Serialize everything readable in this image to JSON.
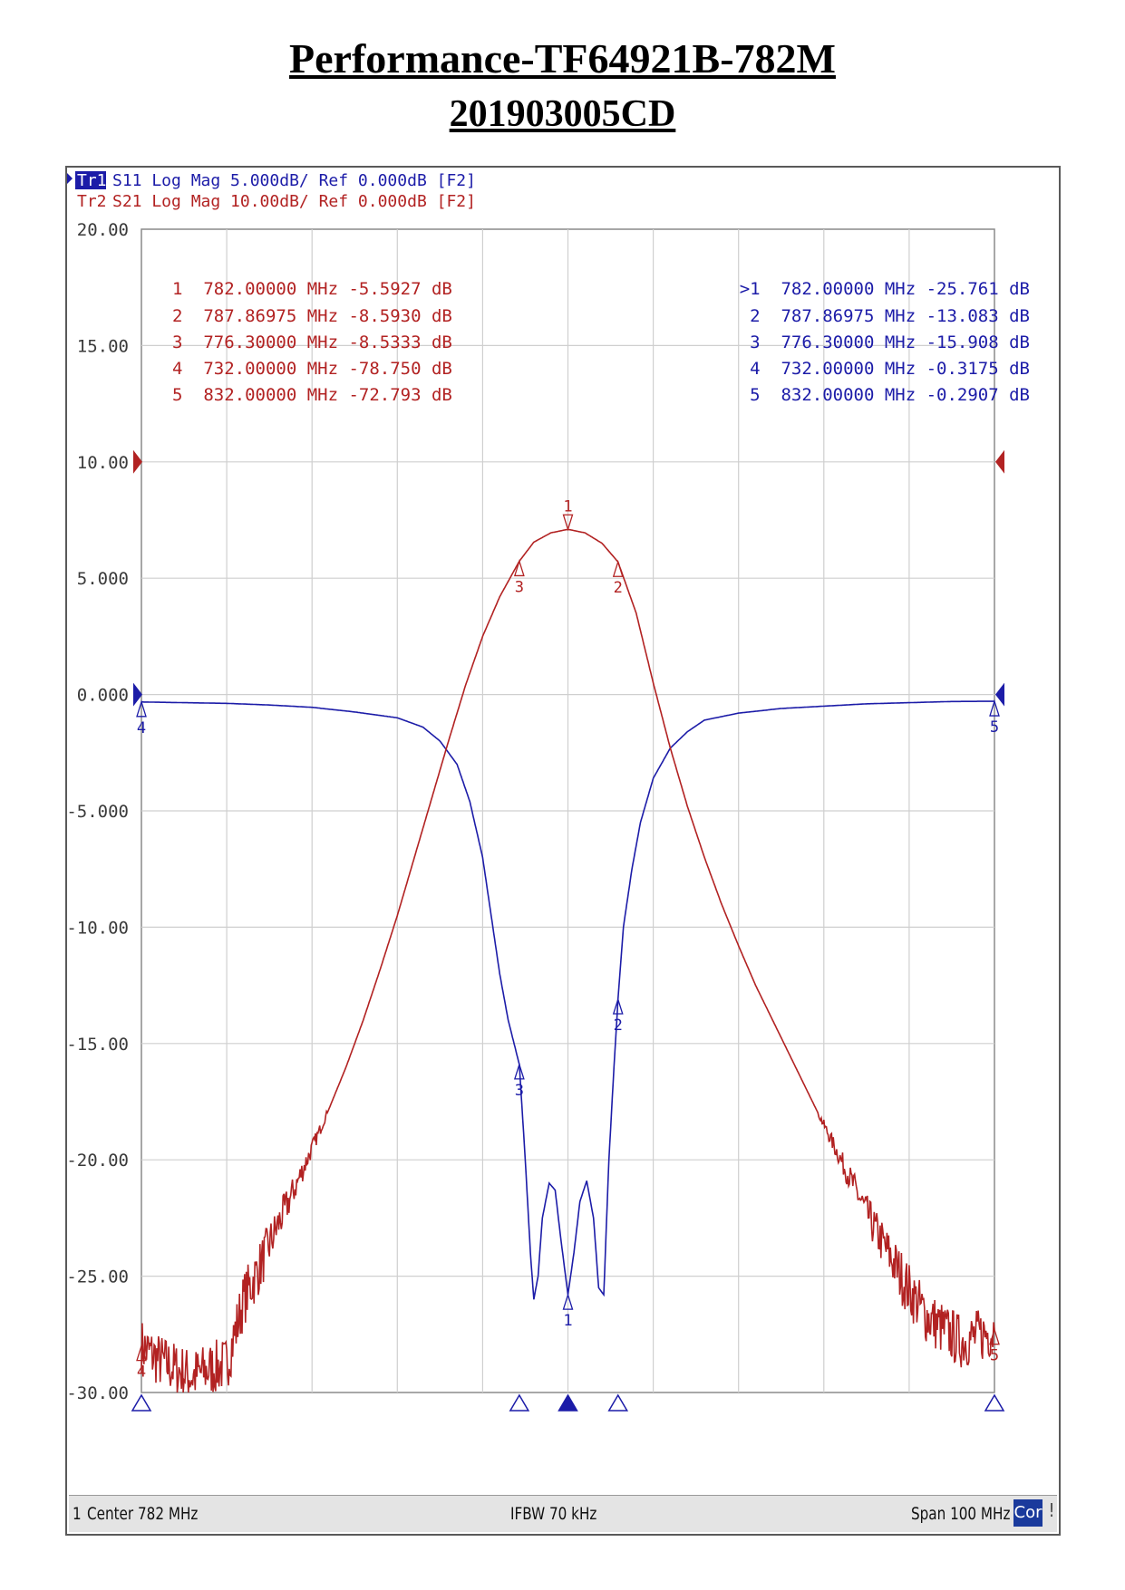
{
  "page": {
    "title": "Performance-TF64921B-782M",
    "subtitle": "201903005CD"
  },
  "traces": [
    {
      "id": "Tr1",
      "label": "Tr1",
      "desc": "S11 Log Mag 5.000dB/ Ref 0.000dB [F2]",
      "color": "#1c1ca8",
      "active": true
    },
    {
      "id": "Tr2",
      "label": "Tr2",
      "desc": "S21 Log Mag 10.00dB/ Ref 0.000dB [F2]",
      "color": "#b22222",
      "active": false
    }
  ],
  "marker_tables": {
    "s21": [
      "1  782.00000 MHz -5.5927 dB",
      "2  787.86975 MHz -8.5930 dB",
      "3  776.30000 MHz -8.5333 dB",
      "4  732.00000 MHz -78.750 dB",
      "5  832.00000 MHz -72.793 dB"
    ],
    "s11": [
      ">1  782.00000 MHz -25.761 dB",
      "2  787.86975 MHz -13.083 dB",
      "3  776.30000 MHz -15.908 dB",
      "4  732.00000 MHz -0.3175 dB",
      "5  832.00000 MHz -0.2907 dB"
    ]
  },
  "status": {
    "channel": "1",
    "center": "Center 782 MHz",
    "ifbw": "IFBW 70 kHz",
    "span": "Span 100 MHz",
    "cor": "Cor",
    "end": "!"
  },
  "chart_data": {
    "type": "line",
    "x_unit": "MHz",
    "x_range": [
      732,
      832
    ],
    "y_range": [
      -30,
      20
    ],
    "y_ticks": [
      "20.00",
      "15.00",
      "10.00",
      "5.000",
      "0.000",
      "-5.000",
      "-10.00",
      "-15.00",
      "-20.00",
      "-25.00",
      "-30.00"
    ],
    "y_tick_values": [
      20,
      15,
      10,
      5,
      0,
      -5,
      -10,
      -15,
      -20,
      -25,
      -30
    ],
    "grid": true,
    "series": [
      {
        "name": "S11",
        "color": "#1c1ca8",
        "points": [
          [
            732,
            -0.32
          ],
          [
            737,
            -0.35
          ],
          [
            742,
            -0.38
          ],
          [
            747,
            -0.45
          ],
          [
            752,
            -0.55
          ],
          [
            757,
            -0.75
          ],
          [
            762,
            -1.0
          ],
          [
            765,
            -1.4
          ],
          [
            767,
            -2.0
          ],
          [
            769,
            -3.0
          ],
          [
            770.5,
            -4.6
          ],
          [
            772,
            -7.0
          ],
          [
            773,
            -9.5
          ],
          [
            774,
            -12.0
          ],
          [
            775,
            -14.0
          ],
          [
            776.3,
            -15.9
          ],
          [
            777,
            -20.0
          ],
          [
            777.6,
            -24.0
          ],
          [
            778,
            -26.0
          ],
          [
            778.5,
            -25.0
          ],
          [
            779,
            -22.5
          ],
          [
            779.8,
            -21.0
          ],
          [
            780.5,
            -21.3
          ],
          [
            781.2,
            -23.5
          ],
          [
            782,
            -25.8
          ],
          [
            782.7,
            -24.0
          ],
          [
            783.4,
            -21.8
          ],
          [
            784.2,
            -20.9
          ],
          [
            785,
            -22.5
          ],
          [
            785.6,
            -25.5
          ],
          [
            786.2,
            -25.8
          ],
          [
            786.8,
            -20.0
          ],
          [
            787.4,
            -16.0
          ],
          [
            787.87,
            -13.1
          ],
          [
            788.5,
            -10.0
          ],
          [
            789.5,
            -7.5
          ],
          [
            790.5,
            -5.5
          ],
          [
            792,
            -3.6
          ],
          [
            794,
            -2.3
          ],
          [
            796,
            -1.6
          ],
          [
            798,
            -1.1
          ],
          [
            802,
            -0.8
          ],
          [
            807,
            -0.6
          ],
          [
            812,
            -0.5
          ],
          [
            817,
            -0.4
          ],
          [
            822,
            -0.35
          ],
          [
            827,
            -0.3
          ],
          [
            832,
            -0.29
          ]
        ]
      },
      {
        "name": "S21",
        "color": "#b22222",
        "points": [
          [
            732,
            -28.0
          ],
          [
            734,
            -28.6
          ],
          [
            736,
            -29.0
          ],
          [
            738,
            -29.3
          ],
          [
            740,
            -29.0
          ],
          [
            742,
            -28.8
          ],
          [
            744,
            -26.0
          ],
          [
            746,
            -24.5
          ],
          [
            748,
            -22.8
          ],
          [
            750,
            -21.2
          ],
          [
            752,
            -19.5
          ],
          [
            754,
            -17.8
          ],
          [
            756,
            -16.0
          ],
          [
            758,
            -14.0
          ],
          [
            760,
            -11.8
          ],
          [
            762,
            -9.5
          ],
          [
            764,
            -7.0
          ],
          [
            766,
            -4.5
          ],
          [
            768,
            -2.0
          ],
          [
            770,
            0.4
          ],
          [
            772,
            2.5
          ],
          [
            774,
            4.2
          ],
          [
            776.3,
            5.73
          ],
          [
            778,
            6.55
          ],
          [
            780,
            6.95
          ],
          [
            782,
            7.1
          ],
          [
            784,
            6.95
          ],
          [
            786,
            6.5
          ],
          [
            787.87,
            5.7
          ],
          [
            790,
            3.5
          ],
          [
            792,
            0.5
          ],
          [
            794,
            -2.3
          ],
          [
            796,
            -4.8
          ],
          [
            798,
            -7.0
          ],
          [
            800,
            -9.0
          ],
          [
            802,
            -10.8
          ],
          [
            804,
            -12.5
          ],
          [
            806,
            -14.0
          ],
          [
            808,
            -15.5
          ],
          [
            810,
            -17.0
          ],
          [
            812,
            -18.5
          ],
          [
            814,
            -20.0
          ],
          [
            816,
            -21.5
          ],
          [
            818,
            -23.0
          ],
          [
            820,
            -24.3
          ],
          [
            822,
            -25.6
          ],
          [
            824,
            -26.7
          ],
          [
            826,
            -27.3
          ],
          [
            828,
            -27.8
          ],
          [
            830,
            -27.6
          ],
          [
            832,
            -27.3
          ]
        ]
      }
    ],
    "markers": {
      "S21": [
        {
          "label": "1",
          "x": 782.0,
          "y": 7.1
        },
        {
          "label": "2",
          "x": 787.86975,
          "y": 5.7
        },
        {
          "label": "3",
          "x": 776.3,
          "y": 5.73
        },
        {
          "label": "4",
          "x": 732.0,
          "y": -28.0
        },
        {
          "label": "5",
          "x": 832.0,
          "y": -27.3
        }
      ],
      "S11": [
        {
          "label": "1",
          "x": 782.0,
          "y": -25.8
        },
        {
          "label": "2",
          "x": 787.86975,
          "y": -13.1
        },
        {
          "label": "3",
          "x": 776.3,
          "y": -15.9
        },
        {
          "label": "4",
          "x": 732.0,
          "y": -0.32
        },
        {
          "label": "5",
          "x": 832.0,
          "y": -0.29
        }
      ]
    },
    "axis_markers": [
      {
        "x": 732.0,
        "filled": false
      },
      {
        "x": 776.3,
        "filled": false
      },
      {
        "x": 782.0,
        "filled": true
      },
      {
        "x": 787.86975,
        "filled": false
      },
      {
        "x": 832.0,
        "filled": false
      }
    ],
    "ref_markers": [
      {
        "trace": "S21",
        "level": 10,
        "color": "#b22222"
      },
      {
        "trace": "S11",
        "level": 0,
        "color": "#1c1ca8"
      }
    ]
  }
}
